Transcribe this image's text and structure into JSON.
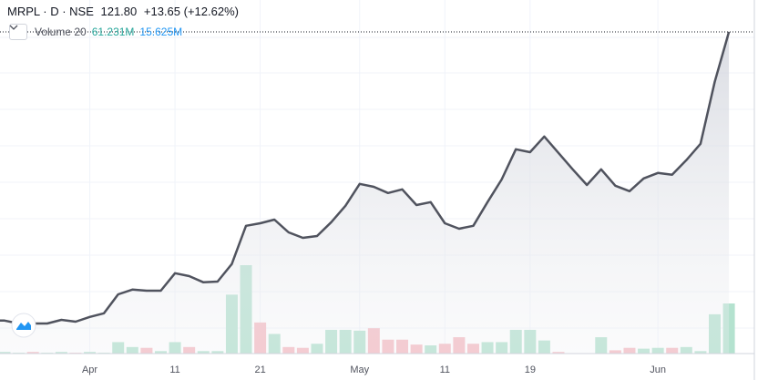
{
  "header": {
    "symbol": "MRPL · D · NSE",
    "last": "121.80",
    "change": "+13.65 (+12.62%)"
  },
  "volume_legend": {
    "label": "Volume 20",
    "value": "61.231M",
    "ma": "15.625M"
  },
  "chart_data": {
    "type": "area",
    "categories": [
      null,
      null,
      null,
      null,
      null,
      null,
      "Apr",
      null,
      null,
      null,
      null,
      null,
      "11",
      null,
      null,
      null,
      null,
      null,
      "21",
      null,
      null,
      null,
      null,
      null,
      null,
      "May",
      null,
      null,
      null,
      null,
      null,
      "11",
      null,
      null,
      null,
      null,
      null,
      "19",
      null,
      null,
      null,
      null,
      null,
      null,
      null,
      null,
      "Jun",
      null,
      null,
      null,
      null,
      null
    ],
    "values": [
      42.6,
      41.8,
      41.8,
      41.8,
      42.8,
      42.3,
      43.6,
      44.6,
      49.8,
      51.1,
      50.8,
      50.8,
      55.6,
      54.8,
      53.1,
      53.3,
      58.1,
      68.6,
      69.3,
      70.3,
      66.8,
      65.3,
      65.8,
      69.6,
      74.1,
      80.1,
      79.3,
      77.6,
      78.6,
      74.3,
      75.1,
      69.3,
      67.8,
      68.6,
      75.1,
      81.3,
      89.6,
      88.8,
      93.1,
      88.6,
      84.1,
      79.8,
      84.1,
      79.6,
      78.1,
      81.6,
      83.1,
      82.6,
      86.6,
      91.1,
      108.1,
      121.8
    ],
    "color": "#50535e",
    "ylim": [
      33.55,
      130.55
    ],
    "volume": {
      "values": [
        2,
        1,
        2,
        1,
        2,
        1,
        2,
        1,
        14,
        8,
        7,
        3,
        14,
        8,
        3,
        3,
        72,
        108,
        38,
        24,
        8,
        7,
        12,
        29,
        29,
        28,
        31,
        17,
        17,
        11,
        10,
        12,
        20,
        12,
        14,
        14,
        29,
        29,
        16,
        2,
        0.5,
        0.5,
        20,
        4,
        7,
        6,
        7,
        7,
        8,
        3,
        48,
        61.231
      ],
      "up_color": "#b4e2cf",
      "down_color": "#f5bcc3",
      "up": [
        1,
        1,
        0,
        1,
        1,
        0,
        1,
        1,
        1,
        1,
        0,
        1,
        1,
        0,
        1,
        1,
        1,
        1,
        0,
        1,
        0,
        0,
        1,
        1,
        1,
        1,
        0,
        0,
        0,
        0,
        1,
        0,
        0,
        0,
        1,
        1,
        1,
        1,
        1,
        0,
        1,
        1,
        1,
        0,
        0,
        1,
        1,
        0,
        1,
        1,
        1,
        1
      ]
    }
  }
}
